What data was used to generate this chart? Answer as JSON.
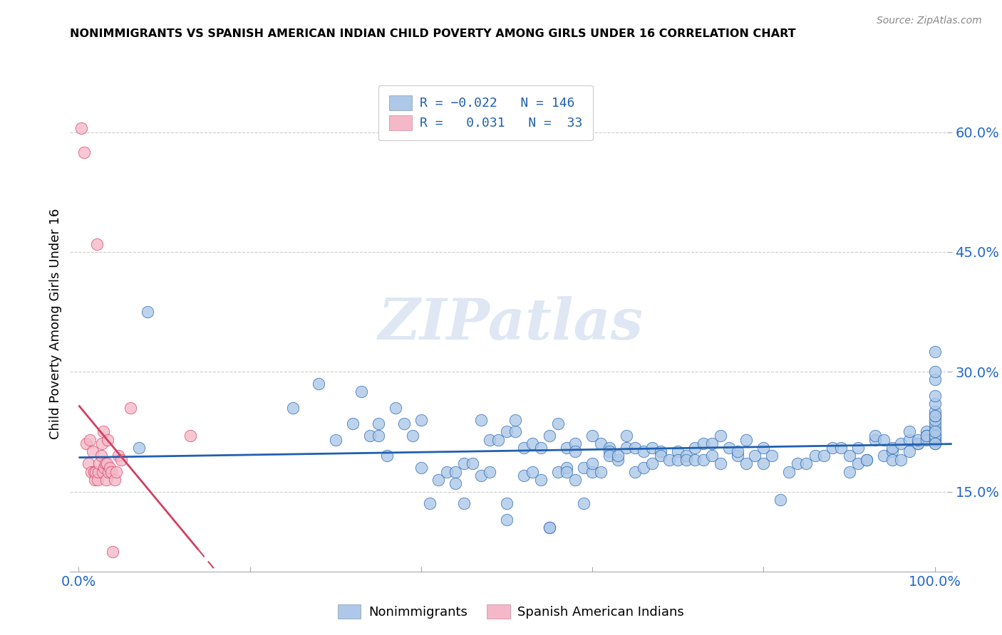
{
  "title": "NONIMMIGRANTS VS SPANISH AMERICAN INDIAN CHILD POVERTY AMONG GIRLS UNDER 16 CORRELATION CHART",
  "source": "Source: ZipAtlas.com",
  "ylabel": "Child Poverty Among Girls Under 16",
  "xlim": [
    -0.01,
    1.02
  ],
  "ylim": [
    0.05,
    0.67
  ],
  "ytick_vals": [
    0.15,
    0.3,
    0.45,
    0.6
  ],
  "ytick_labels": [
    "15.0%",
    "30.0%",
    "45.0%",
    "60.0%"
  ],
  "xtick_vals": [
    0.0,
    0.2,
    0.4,
    0.6,
    0.8,
    1.0
  ],
  "xtick_labels": [
    "0.0%",
    "",
    "",
    "",
    "",
    "100.0%"
  ],
  "blue_color": "#adc8e8",
  "pink_color": "#f5b8c8",
  "blue_line_color": "#2060b0",
  "pink_line_color": "#d04060",
  "watermark": "ZIPatlas",
  "blue_scatter_x": [
    0.07,
    0.08,
    0.25,
    0.28,
    0.3,
    0.32,
    0.33,
    0.34,
    0.35,
    0.35,
    0.36,
    0.37,
    0.38,
    0.39,
    0.4,
    0.4,
    0.41,
    0.42,
    0.43,
    0.44,
    0.44,
    0.45,
    0.45,
    0.46,
    0.47,
    0.47,
    0.48,
    0.48,
    0.49,
    0.5,
    0.5,
    0.5,
    0.51,
    0.51,
    0.52,
    0.52,
    0.53,
    0.53,
    0.54,
    0.54,
    0.55,
    0.55,
    0.55,
    0.56,
    0.56,
    0.57,
    0.57,
    0.57,
    0.58,
    0.58,
    0.58,
    0.59,
    0.59,
    0.6,
    0.6,
    0.6,
    0.61,
    0.61,
    0.62,
    0.62,
    0.62,
    0.63,
    0.63,
    0.64,
    0.64,
    0.65,
    0.65,
    0.66,
    0.66,
    0.67,
    0.67,
    0.68,
    0.68,
    0.69,
    0.7,
    0.7,
    0.71,
    0.71,
    0.72,
    0.72,
    0.73,
    0.73,
    0.74,
    0.74,
    0.75,
    0.75,
    0.76,
    0.77,
    0.77,
    0.78,
    0.78,
    0.79,
    0.8,
    0.8,
    0.81,
    0.82,
    0.83,
    0.84,
    0.85,
    0.86,
    0.87,
    0.88,
    0.89,
    0.9,
    0.9,
    0.91,
    0.91,
    0.92,
    0.92,
    0.93,
    0.93,
    0.94,
    0.94,
    0.95,
    0.95,
    0.95,
    0.96,
    0.96,
    0.97,
    0.97,
    0.97,
    0.98,
    0.98,
    0.98,
    0.99,
    0.99,
    0.99,
    0.99,
    1.0,
    1.0,
    1.0,
    1.0,
    1.0,
    1.0,
    1.0,
    1.0,
    1.0,
    1.0,
    1.0,
    1.0,
    1.0,
    1.0,
    1.0,
    1.0,
    1.0,
    1.0
  ],
  "blue_scatter_y": [
    0.205,
    0.375,
    0.255,
    0.285,
    0.215,
    0.235,
    0.275,
    0.22,
    0.22,
    0.235,
    0.195,
    0.255,
    0.235,
    0.22,
    0.24,
    0.18,
    0.135,
    0.165,
    0.175,
    0.175,
    0.16,
    0.185,
    0.135,
    0.185,
    0.17,
    0.24,
    0.215,
    0.175,
    0.215,
    0.115,
    0.225,
    0.135,
    0.225,
    0.24,
    0.205,
    0.17,
    0.21,
    0.175,
    0.165,
    0.205,
    0.105,
    0.105,
    0.22,
    0.175,
    0.235,
    0.18,
    0.205,
    0.175,
    0.21,
    0.165,
    0.2,
    0.18,
    0.135,
    0.22,
    0.175,
    0.185,
    0.21,
    0.175,
    0.205,
    0.2,
    0.195,
    0.19,
    0.195,
    0.22,
    0.205,
    0.175,
    0.205,
    0.18,
    0.2,
    0.205,
    0.185,
    0.2,
    0.195,
    0.19,
    0.2,
    0.19,
    0.195,
    0.19,
    0.205,
    0.19,
    0.21,
    0.19,
    0.195,
    0.21,
    0.185,
    0.22,
    0.205,
    0.195,
    0.2,
    0.185,
    0.215,
    0.195,
    0.185,
    0.205,
    0.195,
    0.14,
    0.175,
    0.185,
    0.185,
    0.195,
    0.195,
    0.205,
    0.205,
    0.175,
    0.195,
    0.185,
    0.205,
    0.19,
    0.19,
    0.215,
    0.22,
    0.215,
    0.195,
    0.2,
    0.19,
    0.205,
    0.19,
    0.21,
    0.2,
    0.215,
    0.225,
    0.21,
    0.21,
    0.215,
    0.225,
    0.22,
    0.215,
    0.22,
    0.22,
    0.23,
    0.235,
    0.24,
    0.245,
    0.25,
    0.26,
    0.27,
    0.29,
    0.215,
    0.245,
    0.21,
    0.3,
    0.325,
    0.215,
    0.22,
    0.21,
    0.225
  ],
  "pink_scatter_x": [
    0.003,
    0.006,
    0.009,
    0.011,
    0.013,
    0.015,
    0.016,
    0.018,
    0.019,
    0.02,
    0.021,
    0.022,
    0.023,
    0.024,
    0.026,
    0.027,
    0.028,
    0.029,
    0.03,
    0.031,
    0.032,
    0.033,
    0.034,
    0.035,
    0.036,
    0.038,
    0.04,
    0.042,
    0.044,
    0.046,
    0.05,
    0.06,
    0.13
  ],
  "pink_scatter_y": [
    0.605,
    0.575,
    0.21,
    0.185,
    0.215,
    0.175,
    0.2,
    0.175,
    0.165,
    0.175,
    0.46,
    0.165,
    0.175,
    0.185,
    0.195,
    0.21,
    0.175,
    0.225,
    0.18,
    0.185,
    0.165,
    0.185,
    0.215,
    0.175,
    0.18,
    0.175,
    0.075,
    0.165,
    0.175,
    0.195,
    0.19,
    0.255,
    0.22
  ]
}
